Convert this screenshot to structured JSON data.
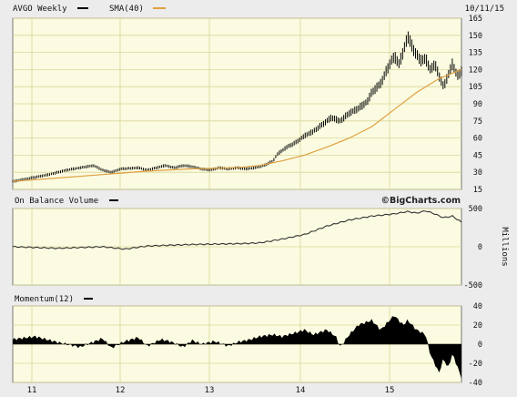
{
  "header": {
    "ticker_label": "AVGO Weekly",
    "sma_label": "SMA(40)",
    "date": "10/11/15",
    "brand": "©BigCharts.com"
  },
  "colors": {
    "panel_bg": "#fbfbe1",
    "page_bg": "#ececec",
    "grid": "#d9d79a",
    "price": "#000000",
    "sma": "#e0a040",
    "obv": "#333333",
    "momentum": "#000000"
  },
  "chart_data": [
    {
      "type": "ohlc",
      "name": "price",
      "title": "AVGO Weekly",
      "legend": [
        "AVGO Weekly",
        "SMA(40)"
      ],
      "ylim": [
        15,
        165
      ],
      "y_ticks": [
        15,
        30,
        45,
        60,
        75,
        90,
        105,
        120,
        135,
        150,
        165
      ],
      "x_ticks": [
        "11",
        "12",
        "13",
        "14",
        "15"
      ],
      "price_points": [
        [
          0,
          22
        ],
        [
          4,
          25
        ],
        [
          8,
          28
        ],
        [
          12,
          32
        ],
        [
          15,
          34
        ],
        [
          18,
          36
        ],
        [
          20,
          32
        ],
        [
          22,
          30
        ],
        [
          24,
          33
        ],
        [
          28,
          34
        ],
        [
          30,
          32
        ],
        [
          32,
          34
        ],
        [
          34,
          36
        ],
        [
          36,
          34
        ],
        [
          38,
          36
        ],
        [
          40,
          35
        ],
        [
          42,
          33
        ],
        [
          44,
          32
        ],
        [
          46,
          34
        ],
        [
          48,
          33
        ],
        [
          50,
          34
        ],
        [
          52,
          33
        ],
        [
          54,
          34
        ],
        [
          56,
          36
        ],
        [
          58,
          40
        ],
        [
          59,
          46
        ],
        [
          61,
          52
        ],
        [
          63,
          56
        ],
        [
          65,
          62
        ],
        [
          67,
          66
        ],
        [
          69,
          72
        ],
        [
          71,
          78
        ],
        [
          73,
          75
        ],
        [
          75,
          82
        ],
        [
          77,
          86
        ],
        [
          79,
          92
        ],
        [
          80,
          100
        ],
        [
          82,
          108
        ],
        [
          84,
          125
        ],
        [
          85,
          132
        ],
        [
          86,
          125
        ],
        [
          87,
          135
        ],
        [
          88,
          150
        ],
        [
          89,
          140
        ],
        [
          90,
          133
        ],
        [
          91,
          128
        ],
        [
          92,
          130
        ],
        [
          93,
          120
        ],
        [
          94,
          125
        ],
        [
          95,
          115
        ],
        [
          96,
          105
        ],
        [
          97,
          115
        ],
        [
          98,
          125
        ],
        [
          99,
          115
        ],
        [
          100,
          118
        ]
      ],
      "sma_points": [
        [
          0,
          22
        ],
        [
          10,
          25
        ],
        [
          20,
          28
        ],
        [
          30,
          31
        ],
        [
          40,
          33
        ],
        [
          50,
          34
        ],
        [
          55,
          36
        ],
        [
          60,
          40
        ],
        [
          65,
          45
        ],
        [
          70,
          52
        ],
        [
          75,
          60
        ],
        [
          80,
          70
        ],
        [
          85,
          85
        ],
        [
          90,
          100
        ],
        [
          95,
          112
        ],
        [
          100,
          120
        ]
      ]
    },
    {
      "type": "line",
      "name": "obv",
      "title": "On Balance Volume",
      "ylabel": "Millions",
      "ylim": [
        -500,
        500
      ],
      "y_ticks": [
        -500,
        0,
        500
      ],
      "points": [
        [
          0,
          0
        ],
        [
          10,
          -20
        ],
        [
          20,
          0
        ],
        [
          25,
          -30
        ],
        [
          30,
          10
        ],
        [
          40,
          30
        ],
        [
          50,
          40
        ],
        [
          55,
          50
        ],
        [
          60,
          100
        ],
        [
          65,
          160
        ],
        [
          70,
          270
        ],
        [
          75,
          350
        ],
        [
          80,
          400
        ],
        [
          85,
          430
        ],
        [
          88,
          460
        ],
        [
          90,
          440
        ],
        [
          92,
          470
        ],
        [
          94,
          430
        ],
        [
          96,
          380
        ],
        [
          98,
          400
        ],
        [
          100,
          320
        ]
      ]
    },
    {
      "type": "area",
      "name": "momentum",
      "title": "Momentum(12)",
      "ylim": [
        -40,
        40
      ],
      "y_ticks": [
        -40,
        -20,
        0,
        20,
        40
      ],
      "points": [
        [
          0,
          5
        ],
        [
          5,
          8
        ],
        [
          10,
          2
        ],
        [
          15,
          -3
        ],
        [
          20,
          6
        ],
        [
          22,
          -4
        ],
        [
          25,
          3
        ],
        [
          28,
          7
        ],
        [
          30,
          -2
        ],
        [
          33,
          5
        ],
        [
          35,
          3
        ],
        [
          38,
          -3
        ],
        [
          40,
          4
        ],
        [
          42,
          0
        ],
        [
          45,
          3
        ],
        [
          48,
          -2
        ],
        [
          50,
          2
        ],
        [
          53,
          5
        ],
        [
          55,
          8
        ],
        [
          58,
          10
        ],
        [
          60,
          8
        ],
        [
          63,
          12
        ],
        [
          65,
          15
        ],
        [
          67,
          10
        ],
        [
          70,
          15
        ],
        [
          72,
          8
        ],
        [
          73,
          -3
        ],
        [
          75,
          10
        ],
        [
          77,
          20
        ],
        [
          80,
          25
        ],
        [
          82,
          15
        ],
        [
          85,
          30
        ],
        [
          87,
          20
        ],
        [
          88,
          25
        ],
        [
          90,
          15
        ],
        [
          92,
          10
        ],
        [
          93,
          -10
        ],
        [
          94,
          -20
        ],
        [
          95,
          -30
        ],
        [
          96,
          -15
        ],
        [
          97,
          -25
        ],
        [
          98,
          -10
        ],
        [
          100,
          -35
        ]
      ]
    }
  ]
}
